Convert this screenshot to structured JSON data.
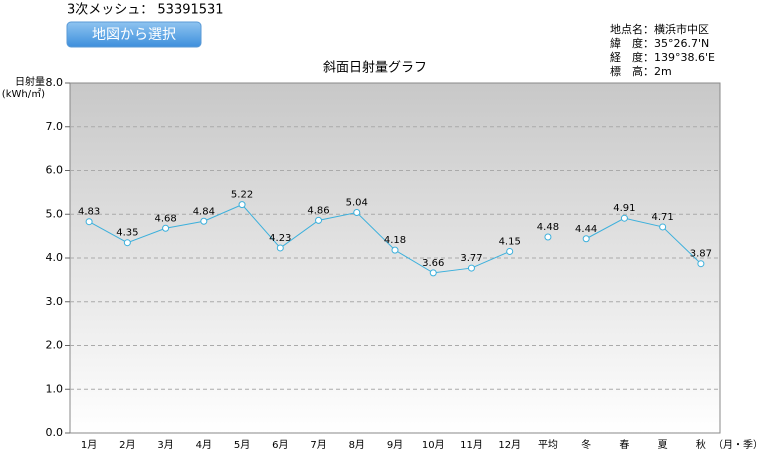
{
  "header": {
    "mesh": "3次メッシュ： 53391531",
    "button": "地図から選択"
  },
  "location_info": [
    "地点名：横浜市中区",
    "緯　度：35°26.7'N",
    "経　度：139°38.6'E",
    "標　高：2m"
  ],
  "chart_data": {
    "type": "line",
    "title": "斜面日射量グラフ",
    "y_label": [
      "日射量",
      "(kWh/㎡)"
    ],
    "x_label": "（月・季）",
    "color": "#3cb0dc",
    "groups": [
      {
        "categories": [
          "1月",
          "2月",
          "3月",
          "4月",
          "5月",
          "6月",
          "7月",
          "8月",
          "9月",
          "10月",
          "11月",
          "12月"
        ],
        "values": [
          4.83,
          4.35,
          4.68,
          4.84,
          5.22,
          4.23,
          4.86,
          5.04,
          4.18,
          3.66,
          3.77,
          4.15
        ]
      },
      {
        "categories": [
          "平均"
        ],
        "values": [
          4.48
        ]
      },
      {
        "categories": [
          "冬",
          "春",
          "夏",
          "秋"
        ],
        "values": [
          4.44,
          4.91,
          4.71,
          3.87
        ]
      }
    ],
    "ylim": [
      0,
      8
    ],
    "yticks": [
      {
        "value": 0,
        "label": "0.0"
      },
      {
        "value": 1,
        "label": "1.0"
      },
      {
        "value": 2,
        "label": "2.0"
      },
      {
        "value": 3,
        "label": "3.0"
      },
      {
        "value": 4,
        "label": "4.0"
      },
      {
        "value": 5,
        "label": "5.0"
      },
      {
        "value": 6,
        "label": "6.0"
      },
      {
        "value": 7,
        "label": "7.0"
      },
      {
        "value": 8,
        "label": "8.0"
      }
    ],
    "grid": true
  }
}
